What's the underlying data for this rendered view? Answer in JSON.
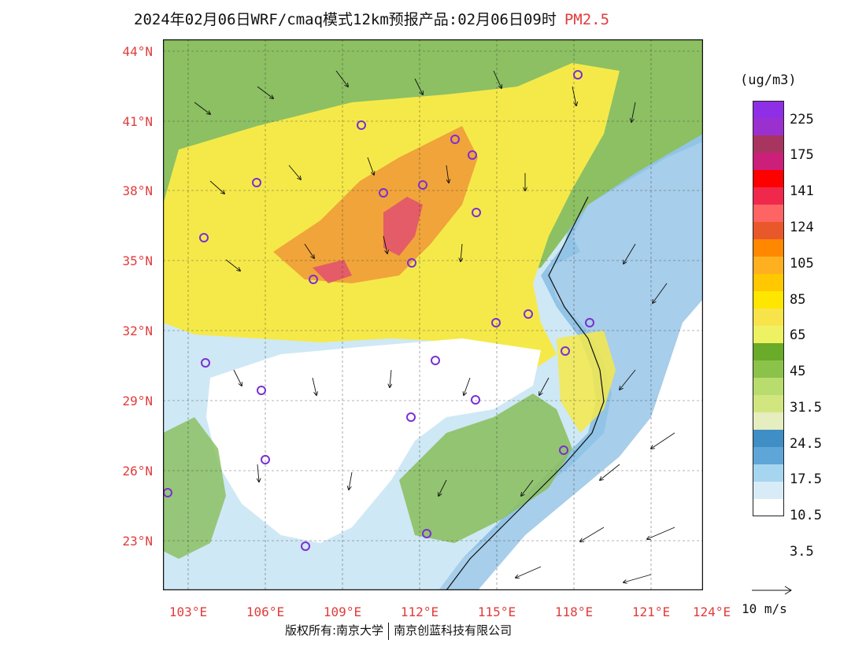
{
  "title": {
    "text": "2024年02月06日WRF/cmaq模式12km预报产品:02月06日09时",
    "variable": "PM2.5"
  },
  "map": {
    "lat_labels": [
      "44°N",
      "41°N",
      "38°N",
      "35°N",
      "32°N",
      "29°N",
      "26°N",
      "23°N"
    ],
    "lon_labels": [
      "103°E",
      "106°E",
      "109°E",
      "112°E",
      "115°E",
      "118°E",
      "121°E",
      "124°E"
    ],
    "region": "East / Central China",
    "field": "PM2.5 concentration with 10m wind vectors",
    "colors": {
      "ocean": "#ffffff",
      "land_clean": "#cfe8f5",
      "moderate_green": "#8cc063",
      "yellow": "#f5e94a",
      "orange": "#f0a43a",
      "hotspot": "#e04a73",
      "city_marker": "#7b2fd1"
    }
  },
  "legend": {
    "unit": "(ug/m3)",
    "boxes": [
      "#8e2ee6",
      "#9b30d0",
      "#a8355f",
      "#cc1f7a",
      "#ff0000",
      "#f0284c",
      "#ff6464",
      "#e8582a",
      "#ff8800",
      "#ffb020",
      "#ffc800",
      "#ffe600",
      "#f8e44a",
      "#eef262",
      "#6aab2a",
      "#8bc34a",
      "#b8dc6e",
      "#d2e680",
      "#e6edbe",
      "#3f8ec5",
      "#5fa6d8",
      "#a6d6ef",
      "#d8ecf8",
      "#ffffff"
    ],
    "labels": [
      "225",
      "175",
      "141",
      "124",
      "105",
      "85",
      "65",
      "45",
      "31.5",
      "24.5",
      "17.5",
      "10.5",
      "3.5"
    ]
  },
  "wind_reference": {
    "label": "10 m/s"
  },
  "footer": {
    "copyright_left": "版权所有:南京大学",
    "copyright_right": "南京创蓝科技有限公司"
  }
}
